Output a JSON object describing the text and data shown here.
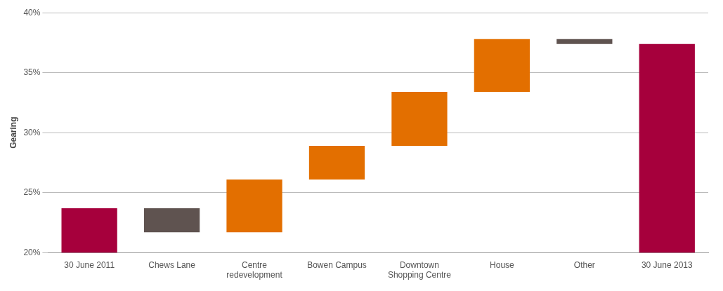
{
  "chart_data": {
    "type": "bar",
    "ylabel": "Gearing",
    "categories": [
      "30 June 2011",
      "Chews Lane",
      "Centre redevelopment",
      "Bowen Campus",
      "Downtown Shopping Centre",
      "House",
      "Other",
      "30 June 2013"
    ],
    "values": [
      23.7,
      -2.0,
      4.4,
      2.8,
      4.5,
      4.4,
      -0.4,
      37.4
    ],
    "base": [
      null,
      23.7,
      21.7,
      26.1,
      28.9,
      33.4,
      37.8,
      null
    ],
    "colors": [
      "#a6003c",
      "#5f5350",
      "#e36f00",
      "#e36f00",
      "#e36f00",
      "#e36f00",
      "#5f5350",
      "#a6003c"
    ],
    "ylim": [
      20,
      40
    ],
    "yticks": [
      {
        "value": 20,
        "label": "20%"
      },
      {
        "value": 25,
        "label": "25%"
      },
      {
        "value": 30,
        "label": "30%"
      },
      {
        "value": 35,
        "label": "35%"
      },
      {
        "value": 40,
        "label": "40%"
      }
    ],
    "grid": "y",
    "legend": false
  }
}
